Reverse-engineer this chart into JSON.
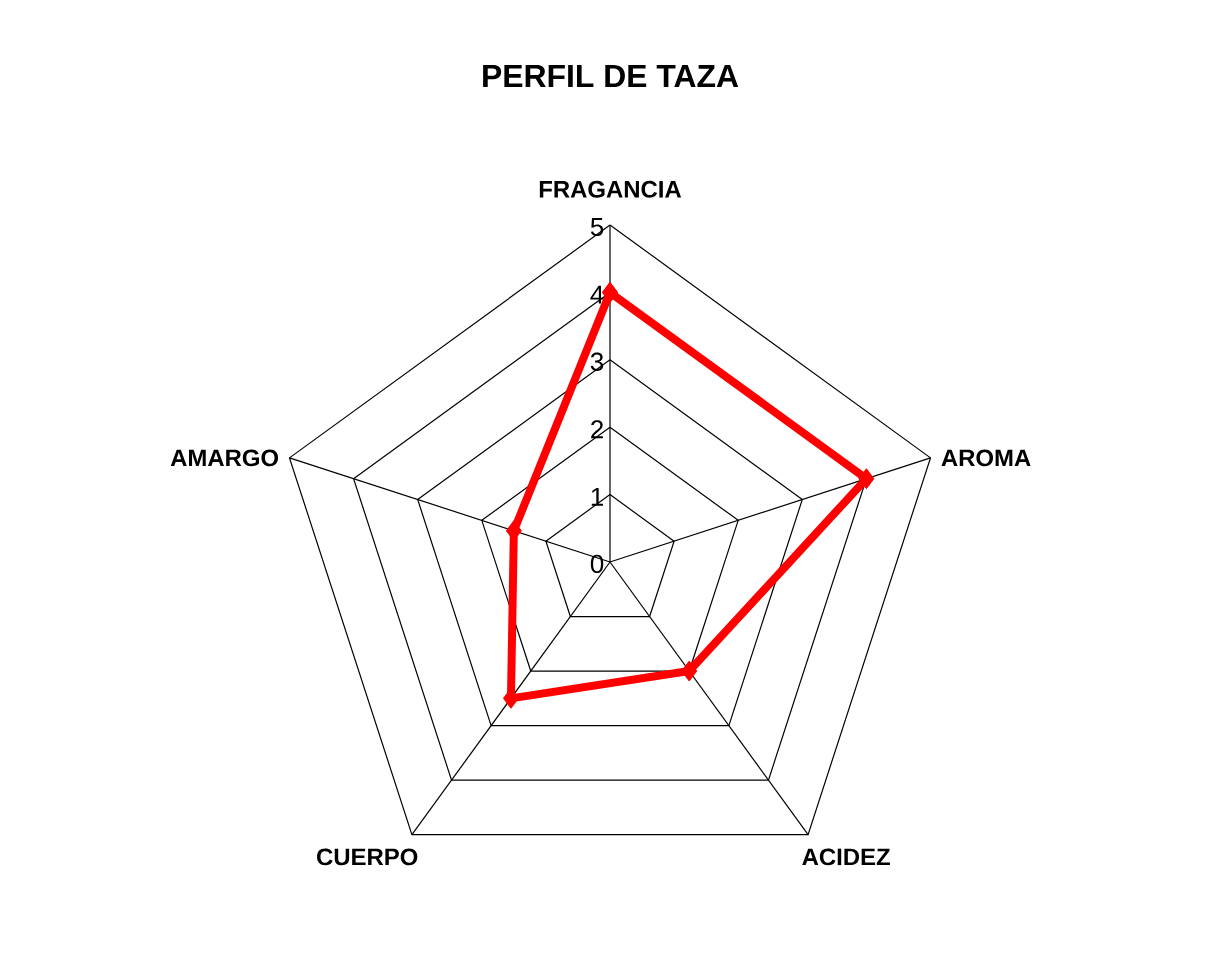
{
  "chart_data": {
    "type": "radar",
    "title": "PERFIL DE TAZA",
    "categories": [
      "FRAGANCIA",
      "AROMA",
      "ACIDEZ",
      "CUERPO",
      "AMARGO"
    ],
    "series": [
      {
        "color": "#ff0000",
        "values": [
          4,
          4,
          2,
          2.5,
          1.5
        ]
      }
    ],
    "ylim": [
      0,
      5
    ],
    "yticks": [
      0,
      1,
      2,
      3,
      4,
      5
    ],
    "grid": true,
    "marker": "diamond"
  }
}
